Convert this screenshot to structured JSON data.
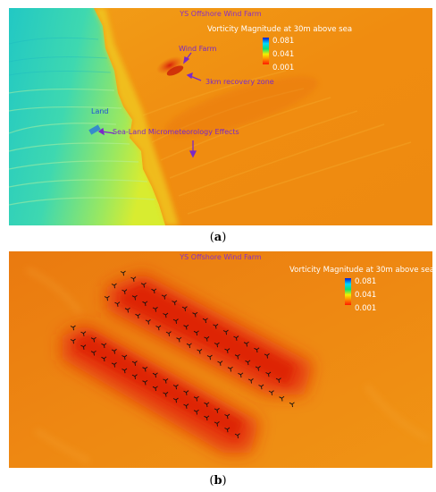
{
  "panel_a": {
    "title": "YS Offshore Wind Farm",
    "legend": {
      "title": "Vorticity Magnitude at 30m above sea",
      "ticks": [
        "0.081",
        "0.041",
        "0.001"
      ]
    },
    "annotations": {
      "wind_farm": "Wind Farm",
      "recovery": "3km recovery zone",
      "land": "Land",
      "sea_land": "Sea-Land Micrometeorology Effects"
    },
    "caption": {
      "open": "(",
      "letter": "a",
      "close": ")"
    }
  },
  "panel_b": {
    "title": "YS Offshore Wind Farm",
    "legend": {
      "title": "Vorticity Magnitude at 30m above sea",
      "ticks": [
        "0.081",
        "0.041",
        "0.001"
      ]
    },
    "caption": {
      "open": "(",
      "letter": "b",
      "close": ")"
    }
  },
  "colors": {
    "field_orange": "#f08a12",
    "land_cyan": "#3fe0b8",
    "wake_red": "#e8200e",
    "annotation": "#7a28c8"
  }
}
